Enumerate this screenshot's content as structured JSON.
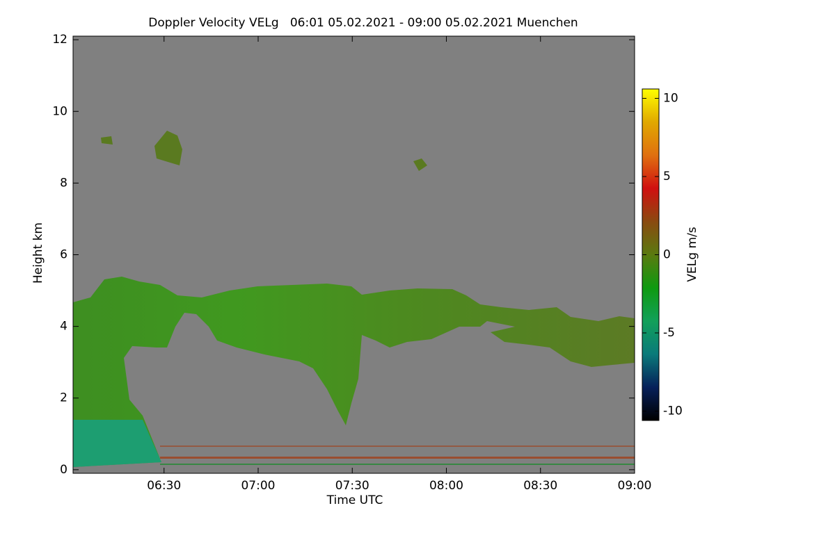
{
  "chart_data": {
    "type": "heatmap",
    "title": "Doppler Velocity VELg   06:01 05.02.2021 - 09:00 05.02.2021 Muenchen",
    "x_label": "Time UTC",
    "y_label": "Height km",
    "colorbar_label": "VELg m/s",
    "xlim": [
      361,
      540
    ],
    "xticks": [
      {
        "value": 390,
        "label": "06:30"
      },
      {
        "value": 420,
        "label": "07:00"
      },
      {
        "value": 450,
        "label": "07:30"
      },
      {
        "value": 480,
        "label": "08:00"
      },
      {
        "value": 510,
        "label": "08:30"
      },
      {
        "value": 540,
        "label": "09:00"
      }
    ],
    "ylim": [
      -0.1,
      12.1
    ],
    "yticks": [
      0,
      2,
      4,
      6,
      8,
      10,
      12
    ],
    "clim": [
      -10.6,
      10.6
    ],
    "cticks": [
      -10,
      -5,
      0,
      5,
      10
    ],
    "colormap": [
      "#000000",
      "#06205a",
      "#0a7a7a",
      "#12a05a",
      "#0e9a10",
      "#5a7a10",
      "#8a4a10",
      "#d01010",
      "#e07010",
      "#e0a800",
      "#ffff00"
    ],
    "background": "#808080"
  }
}
